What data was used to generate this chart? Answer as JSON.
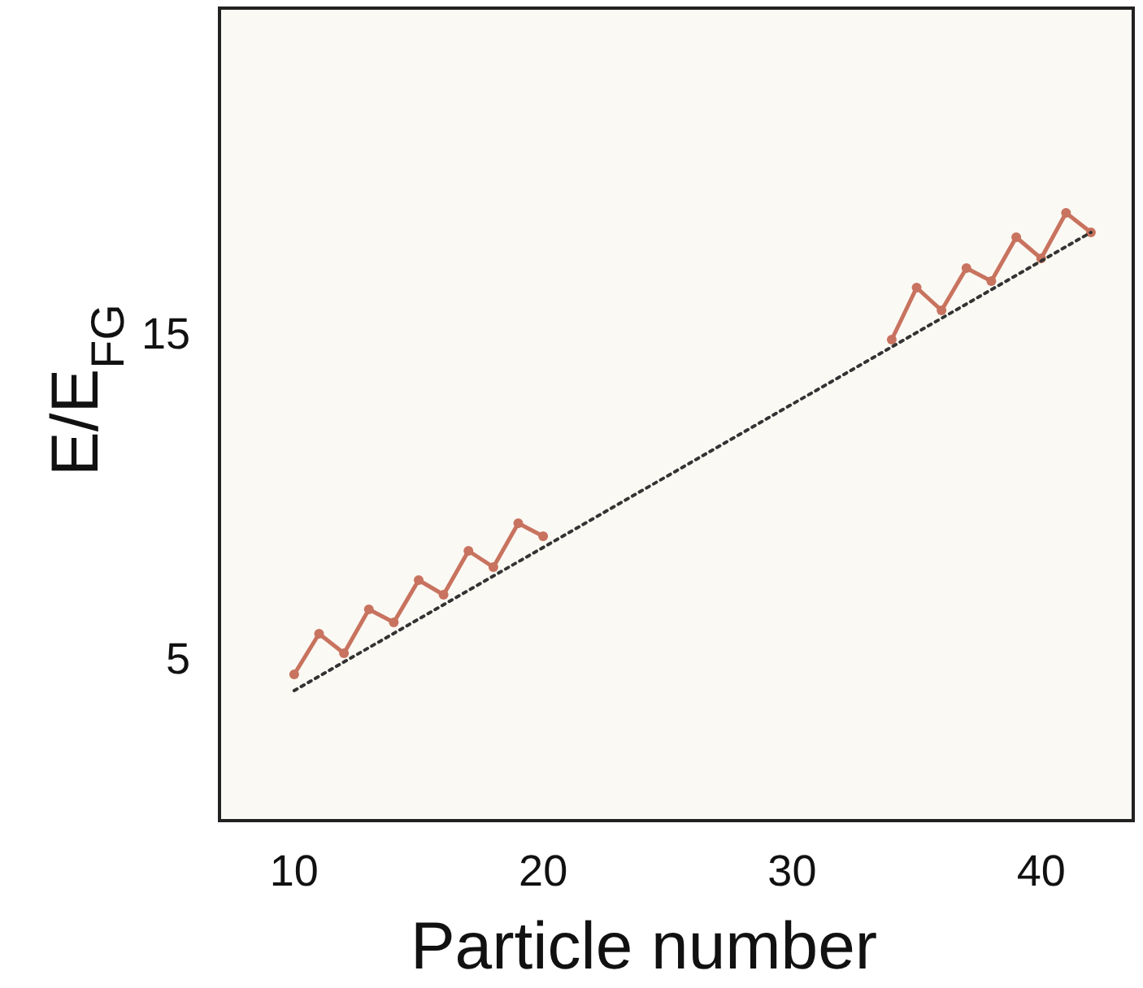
{
  "chart_data": {
    "type": "line",
    "xlabel": "Particle number",
    "ylabel": "E/E$_{FG}$",
    "x": [
      10,
      11,
      12,
      13,
      14,
      15,
      16,
      17,
      18,
      19,
      20,
      21,
      22,
      23,
      24,
      25,
      26,
      27,
      28,
      29,
      30,
      31,
      32,
      33,
      34,
      35,
      36,
      37,
      38,
      39,
      40,
      41,
      42
    ],
    "series": [
      {
        "color": "#c8735f",
        "marker": "circle",
        "line_style": "solid",
        "values": [
          4.5,
          5.75,
          5.15,
          6.5,
          6.1,
          7.4,
          6.95,
          8.3,
          7.8,
          9.15,
          8.75,
          null,
          null,
          null,
          null,
          null,
          null,
          null,
          null,
          null,
          null,
          null,
          null,
          null,
          14.8,
          16.4,
          15.7,
          17.0,
          16.6,
          17.95,
          17.3,
          18.7,
          18.1
        ]
      },
      {
        "color": "#333333",
        "marker": "none",
        "line_style": "dotted",
        "x": [
          10,
          42
        ],
        "values": [
          4.0,
          18.1
        ]
      }
    ],
    "xlim": [
      7,
      43.7
    ],
    "ylim": [
      0,
      25
    ],
    "xticks": [
      10,
      20,
      30,
      40
    ],
    "yticks": [
      5,
      15
    ],
    "grid": false
  }
}
